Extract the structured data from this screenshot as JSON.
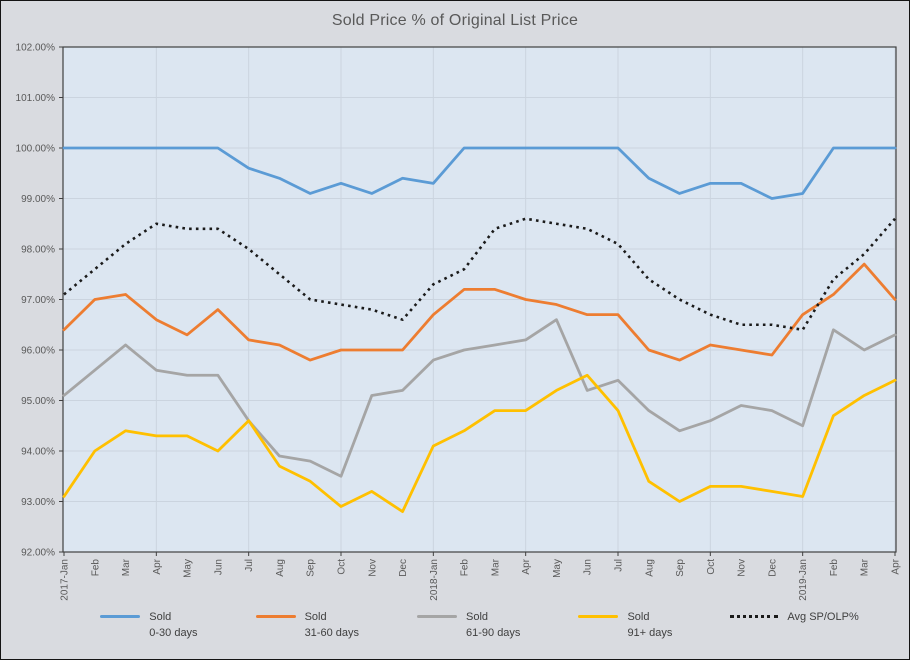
{
  "window": {
    "bg": "#d9dbe0",
    "border": "#141414"
  },
  "chart": {
    "plot_bg": "#dce6f1",
    "grid_color": "#cbd4df",
    "axis_color": "#404040",
    "label_color": "#595959",
    "title_color": "#595959"
  },
  "chart_data": {
    "type": "line",
    "title": "Sold Price % of Original List Price",
    "xlabel": "",
    "ylabel": "",
    "ylim": [
      92,
      102
    ],
    "y_tick_step": 1,
    "grid": true,
    "legend_position": "bottom",
    "y_tick_labels": [
      "92.00%",
      "93.00%",
      "94.00%",
      "95.00%",
      "96.00%",
      "97.00%",
      "98.00%",
      "99.00%",
      "100.00%",
      "101.00%",
      "102.00%"
    ],
    "categories": [
      "2017-Jan",
      "Feb",
      "Mar",
      "Apr",
      "May",
      "Jun",
      "Jul",
      "Aug",
      "Sep",
      "Oct",
      "Nov",
      "Dec",
      "2018-Jan",
      "Feb",
      "Mar",
      "Apr",
      "May",
      "Jun",
      "Jul",
      "Aug",
      "Sep",
      "Oct",
      "Nov",
      "Dec",
      "2019-Jan",
      "Feb",
      "Mar",
      "Apr"
    ],
    "series": [
      {
        "name": "Sold 0-30 days",
        "legend": [
          "Sold",
          "0-30 days"
        ],
        "color": "#5b9bd5",
        "style": "solid",
        "values": [
          100.0,
          100.0,
          100.0,
          100.0,
          100.0,
          100.0,
          99.6,
          99.4,
          99.1,
          99.3,
          99.1,
          99.4,
          99.3,
          100.0,
          100.0,
          100.0,
          100.0,
          100.0,
          100.0,
          99.4,
          99.1,
          99.3,
          99.3,
          99.0,
          99.1,
          100.0,
          100.0,
          100.0
        ]
      },
      {
        "name": "Sold 31-60 days",
        "legend": [
          "Sold",
          "31-60 days"
        ],
        "color": "#ed7d31",
        "style": "solid",
        "values": [
          96.4,
          97.0,
          97.1,
          96.6,
          96.3,
          96.8,
          96.2,
          96.1,
          95.8,
          96.0,
          96.0,
          96.0,
          96.7,
          97.2,
          97.2,
          97.0,
          96.9,
          96.7,
          96.7,
          96.0,
          95.8,
          96.1,
          96.0,
          95.9,
          96.7,
          97.1,
          97.7,
          97.0
        ]
      },
      {
        "name": "Sold 61-90 days",
        "legend": [
          "Sold",
          "61-90 days"
        ],
        "color": "#a5a5a5",
        "style": "solid",
        "values": [
          95.1,
          95.6,
          96.1,
          95.6,
          95.5,
          95.5,
          94.6,
          93.9,
          93.8,
          93.5,
          95.1,
          95.2,
          95.8,
          96.0,
          96.1,
          96.2,
          96.6,
          95.2,
          95.4,
          94.8,
          94.4,
          94.6,
          94.9,
          94.8,
          94.5,
          96.4,
          96.0,
          96.3
        ]
      },
      {
        "name": "Sold 91+ days",
        "legend": [
          "Sold",
          "91+ days"
        ],
        "color": "#ffc000",
        "style": "solid",
        "values": [
          93.1,
          94.0,
          94.4,
          94.3,
          94.3,
          94.0,
          94.6,
          93.7,
          93.4,
          92.9,
          93.2,
          92.8,
          94.1,
          94.4,
          94.8,
          94.8,
          95.2,
          95.5,
          94.8,
          93.4,
          93.0,
          93.3,
          93.3,
          93.2,
          93.1,
          94.7,
          95.1,
          95.4
        ]
      },
      {
        "name": "Avg SP/OLP%",
        "legend": [
          "Avg SP/OLP%"
        ],
        "color": "#1a1a1a",
        "style": "dotted",
        "values": [
          97.1,
          97.6,
          98.1,
          98.5,
          98.4,
          98.4,
          98.0,
          97.5,
          97.0,
          96.9,
          96.8,
          96.6,
          97.3,
          97.6,
          98.4,
          98.6,
          98.5,
          98.4,
          98.1,
          97.4,
          97.0,
          96.7,
          96.5,
          96.5,
          96.4,
          97.4,
          97.9,
          98.6
        ]
      }
    ]
  }
}
